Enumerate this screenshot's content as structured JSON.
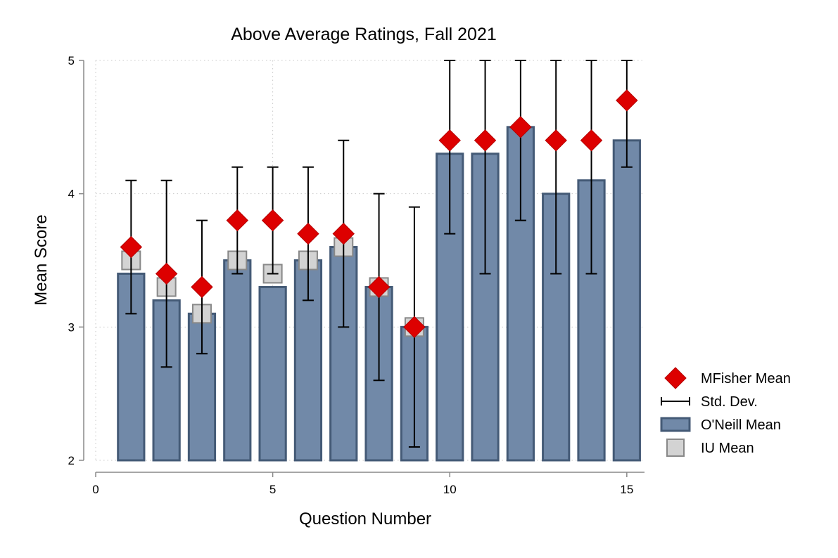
{
  "chart_data": {
    "type": "bar",
    "title": "Above Average Ratings, Fall 2021",
    "xlabel": "Question Number",
    "ylabel": "Mean Score",
    "xlim": [
      0,
      15.5
    ],
    "ylim": [
      2,
      5
    ],
    "x_ticks": [
      0,
      5,
      10,
      15
    ],
    "y_ticks": [
      2,
      3,
      4,
      5
    ],
    "grid": true,
    "legend_position": "right",
    "colors": {
      "bar_fill": "#7189a8",
      "bar_edge": "#445a76",
      "iu_fill": "#d3d3d3",
      "iu_edge": "#888888",
      "mfisher": "#dd0000",
      "sd": "#000000",
      "grid": "#c8c8c8",
      "axis": "#888888"
    },
    "x": [
      1,
      2,
      3,
      4,
      5,
      6,
      7,
      8,
      9,
      10,
      11,
      12,
      13,
      14,
      15
    ],
    "series": [
      {
        "name": "O'Neill Mean",
        "type": "bar",
        "values": [
          3.4,
          3.2,
          3.1,
          3.5,
          3.3,
          3.5,
          3.6,
          3.3,
          3.0,
          4.3,
          4.3,
          4.5,
          4.0,
          4.1,
          4.4
        ]
      },
      {
        "name": "IU Mean",
        "type": "scatter",
        "marker": "square",
        "values": [
          3.5,
          3.3,
          3.1,
          3.5,
          3.4,
          3.5,
          3.6,
          3.3,
          3.0,
          null,
          null,
          null,
          null,
          null,
          null
        ]
      },
      {
        "name": "MFisher Mean",
        "type": "scatter",
        "marker": "diamond",
        "values": [
          3.6,
          3.4,
          3.3,
          3.8,
          3.8,
          3.7,
          3.7,
          3.3,
          3.0,
          4.4,
          4.4,
          4.5,
          4.4,
          4.4,
          4.7
        ]
      },
      {
        "name": "Std. Dev.",
        "type": "errorbar",
        "low": [
          3.1,
          2.7,
          2.8,
          3.4,
          3.4,
          3.2,
          3.0,
          2.6,
          2.1,
          3.7,
          3.4,
          3.8,
          3.4,
          3.4,
          4.2
        ],
        "high": [
          4.1,
          4.1,
          3.8,
          4.2,
          4.2,
          4.2,
          4.4,
          4.0,
          3.9,
          5.0,
          5.0,
          5.0,
          5.0,
          5.0,
          5.0
        ]
      }
    ],
    "legend": [
      {
        "name": "MFisher Mean",
        "marker": "diamond"
      },
      {
        "name": "Std. Dev.",
        "marker": "errorbar"
      },
      {
        "name": "O'Neill Mean",
        "marker": "bar"
      },
      {
        "name": "IU Mean",
        "marker": "square"
      }
    ]
  }
}
